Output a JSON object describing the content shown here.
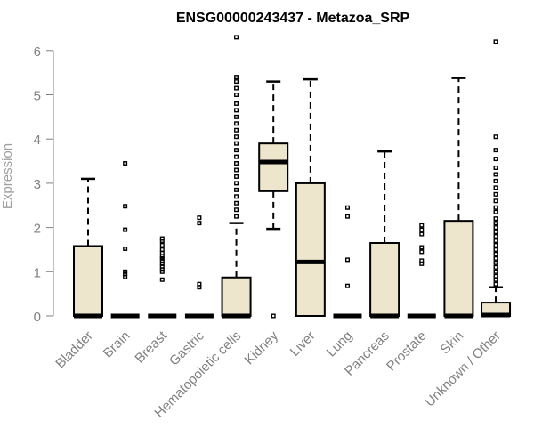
{
  "chart_data": {
    "type": "box",
    "title": "ENSG00000243437 - Metazoa_SRP",
    "xlabel": "",
    "ylabel": "Expression",
    "ylim": [
      0,
      6.3
    ],
    "yticks": [
      0,
      1,
      2,
      3,
      4,
      5,
      6
    ],
    "box_color": "#EDE6CC",
    "categories": [
      "Bladder",
      "Brain",
      "Breast",
      "Gastric",
      "Hematopoietic cells",
      "Kidney",
      "Liver",
      "Lung",
      "Pancreas",
      "Prostate",
      "Skin",
      "Unknown / Other"
    ],
    "boxes": [
      {
        "q1": 0,
        "median": 0,
        "q3": 1.58,
        "whisker_low": 0,
        "whisker_high": 3.1,
        "outliers": []
      },
      {
        "q1": 0,
        "median": 0,
        "q3": 0,
        "whisker_low": 0,
        "whisker_high": 0,
        "outliers": [
          0.88,
          0.95,
          1.0,
          1.52,
          1.95,
          2.48,
          3.45
        ]
      },
      {
        "q1": 0,
        "median": 0,
        "q3": 0,
        "whisker_low": 0,
        "whisker_high": 0,
        "outliers": [
          0.82,
          1.0,
          1.05,
          1.12,
          1.18,
          1.25,
          1.3,
          1.35,
          1.42,
          1.5,
          1.6,
          1.7,
          1.75
        ]
      },
      {
        "q1": 0,
        "median": 0,
        "q3": 0,
        "whisker_low": 0,
        "whisker_high": 0,
        "outliers": [
          0.65,
          0.72,
          2.1,
          2.22
        ]
      },
      {
        "q1": 0,
        "median": 0,
        "q3": 0.87,
        "whisker_low": 0,
        "whisker_high": 2.1,
        "outliers": [
          2.25,
          2.4,
          2.55,
          2.7,
          2.85,
          3.0,
          3.15,
          3.3,
          3.45,
          3.6,
          3.75,
          3.9,
          4.05,
          4.2,
          4.35,
          4.5,
          4.65,
          4.8,
          5.0,
          5.15,
          5.3,
          5.4,
          6.3
        ]
      },
      {
        "q1": 2.82,
        "median": 3.48,
        "q3": 3.9,
        "whisker_low": 1.97,
        "whisker_high": 5.3,
        "outliers": [
          0
        ]
      },
      {
        "q1": 0,
        "median": 1.22,
        "q3": 3.0,
        "whisker_low": 0,
        "whisker_high": 5.35,
        "outliers": []
      },
      {
        "q1": 0,
        "median": 0,
        "q3": 0,
        "whisker_low": 0,
        "whisker_high": 0,
        "outliers": [
          0.68,
          1.27,
          2.25,
          2.45
        ]
      },
      {
        "q1": 0,
        "median": 0,
        "q3": 1.65,
        "whisker_low": 0,
        "whisker_high": 3.72,
        "outliers": []
      },
      {
        "q1": 0,
        "median": 0,
        "q3": 0,
        "whisker_low": 0,
        "whisker_high": 0,
        "outliers": [
          1.18,
          1.25,
          1.45,
          1.55,
          1.85,
          1.95,
          2.05
        ]
      },
      {
        "q1": 0,
        "median": 0,
        "q3": 2.15,
        "whisker_low": 0,
        "whisker_high": 5.38,
        "outliers": []
      },
      {
        "q1": 0,
        "median": 0.02,
        "q3": 0.3,
        "whisker_low": 0,
        "whisker_high": 0.65,
        "outliers": [
          0.72,
          0.82,
          0.9,
          1.0,
          1.1,
          1.2,
          1.3,
          1.4,
          1.5,
          1.6,
          1.7,
          1.8,
          1.9,
          2.0,
          2.1,
          2.2,
          2.35,
          2.45,
          2.6,
          2.75,
          2.9,
          3.05,
          3.2,
          3.35,
          3.55,
          3.75,
          4.05,
          6.2
        ]
      }
    ]
  }
}
